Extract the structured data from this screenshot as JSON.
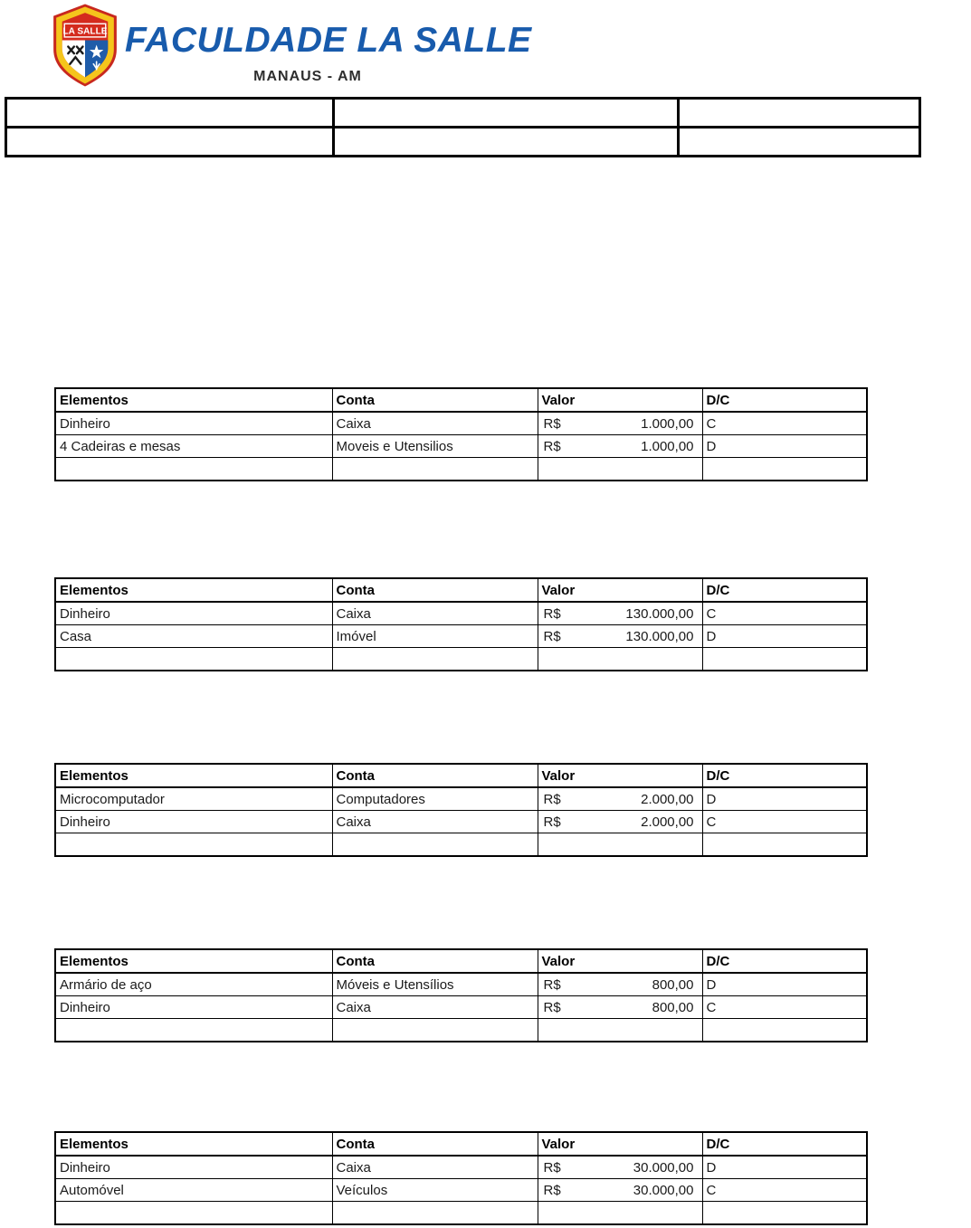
{
  "header": {
    "logo": {
      "banner_text": "LA SALLE"
    },
    "title": "FACULDADE LA SALLE",
    "subtitle": "MANAUS - AM"
  },
  "colors": {
    "brand_blue": "#185BAC",
    "shield_red": "#D42B1E",
    "shield_gold": "#F5C51C",
    "shield_blue": "#1F5CA9"
  },
  "info_table": {
    "rows": [
      [
        "",
        "",
        ""
      ],
      [
        "",
        "",
        ""
      ]
    ]
  },
  "ledger_tables": [
    {
      "headers": [
        "Elementos",
        "Conta",
        "Valor",
        "D/C"
      ],
      "rows": [
        {
          "elemento": "Dinheiro",
          "conta": "Caixa",
          "moeda": "R$",
          "valor": "1.000,00",
          "dc": "C"
        },
        {
          "elemento": "4 Cadeiras e mesas",
          "conta": "Moveis e Utensilios",
          "moeda": "R$",
          "valor": "1.000,00",
          "dc": "D"
        },
        {
          "elemento": "",
          "conta": "",
          "moeda": "",
          "valor": "",
          "dc": ""
        }
      ]
    },
    {
      "headers": [
        "Elementos",
        "Conta",
        "Valor",
        "D/C"
      ],
      "rows": [
        {
          "elemento": "Dinheiro",
          "conta": "Caixa",
          "moeda": "R$",
          "valor": "130.000,00",
          "dc": "C"
        },
        {
          "elemento": "Casa",
          "conta": "Imóvel",
          "moeda": "R$",
          "valor": "130.000,00",
          "dc": "D"
        },
        {
          "elemento": "",
          "conta": "",
          "moeda": "",
          "valor": "",
          "dc": ""
        }
      ]
    },
    {
      "headers": [
        "Elementos",
        "Conta",
        "Valor",
        "D/C"
      ],
      "rows": [
        {
          "elemento": "Microcomputador",
          "conta": "Computadores",
          "moeda": "R$",
          "valor": "2.000,00",
          "dc": "D"
        },
        {
          "elemento": "Dinheiro",
          "conta": "Caixa",
          "moeda": "R$",
          "valor": "2.000,00",
          "dc": "C"
        },
        {
          "elemento": "",
          "conta": "",
          "moeda": "",
          "valor": "",
          "dc": ""
        }
      ]
    },
    {
      "headers": [
        "Elementos",
        "Conta",
        "Valor",
        "D/C"
      ],
      "rows": [
        {
          "elemento": "Armário de aço",
          "conta": "Móveis e Utensílios",
          "moeda": "R$",
          "valor": "800,00",
          "dc": "D"
        },
        {
          "elemento": "Dinheiro",
          "conta": "Caixa",
          "moeda": "R$",
          "valor": "800,00",
          "dc": "C"
        },
        {
          "elemento": "",
          "conta": "",
          "moeda": "",
          "valor": "",
          "dc": ""
        }
      ]
    },
    {
      "headers": [
        "Elementos",
        "Conta",
        "Valor",
        "D/C"
      ],
      "rows": [
        {
          "elemento": "Dinheiro",
          "conta": "Caixa",
          "moeda": "R$",
          "valor": "30.000,00",
          "dc": "D"
        },
        {
          "elemento": "Automóvel",
          "conta": "Veículos",
          "moeda": "R$",
          "valor": "30.000,00",
          "dc": "C"
        },
        {
          "elemento": "",
          "conta": "",
          "moeda": "",
          "valor": "",
          "dc": ""
        }
      ]
    }
  ]
}
